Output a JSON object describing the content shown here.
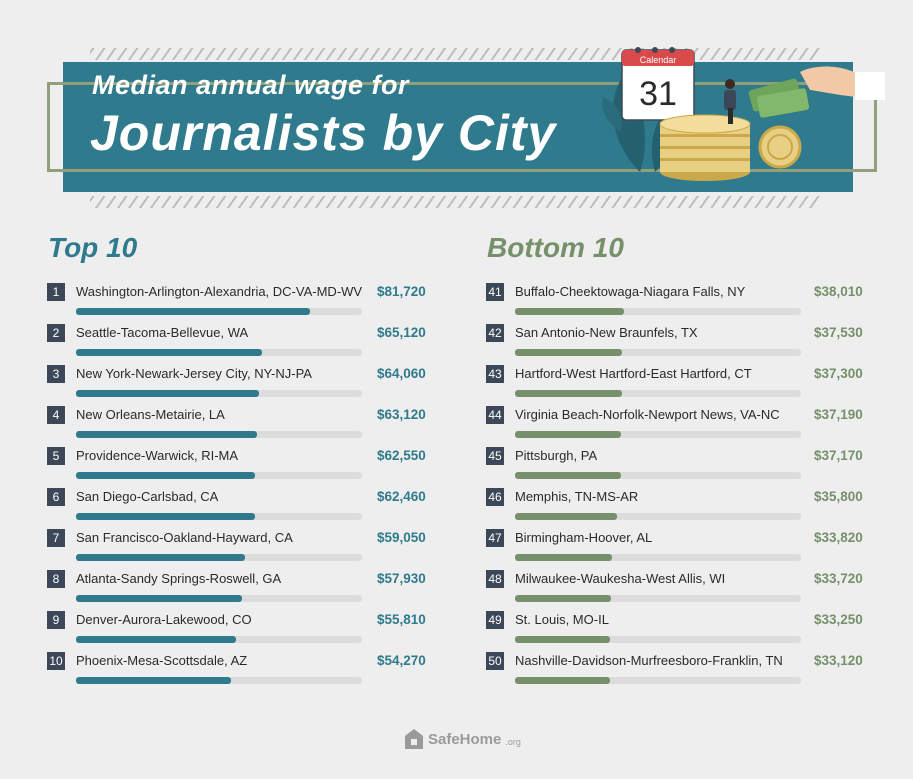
{
  "header": {
    "title_line1": "Median annual wage for",
    "title_line2": "Journalists by City",
    "calendar_label": "Calendar",
    "calendar_day": "31"
  },
  "colors": {
    "top": "#2f7a8c",
    "bottom": "#75906a",
    "rank_badge": "#3c4858"
  },
  "chart_data": [
    {
      "type": "bar",
      "title": "Top 10",
      "categories": [
        "Washington-Arlington-Alexandria, DC-VA-MD-WV",
        "Seattle-Tacoma-Bellevue, WA",
        "New York-Newark-Jersey City, NY-NJ-PA",
        "New Orleans-Metairie, LA",
        "Providence-Warwick, RI-MA",
        "San Diego-Carlsbad, CA",
        "San Francisco-Oakland-Hayward, CA",
        "Atlanta-Sandy Springs-Roswell, GA",
        "Denver-Aurora-Lakewood, CO",
        "Phoenix-Mesa-Scottsdale, AZ"
      ],
      "ranks": [
        "1",
        "2",
        "3",
        "4",
        "5",
        "6",
        "7",
        "8",
        "9",
        "10"
      ],
      "values": [
        81720,
        65120,
        64060,
        63120,
        62550,
        62460,
        59050,
        57930,
        55810,
        54270
      ],
      "value_labels": [
        "$81,720",
        "$65,120",
        "$64,060",
        "$63,120",
        "$62,550",
        "$62,460",
        "$59,050",
        "$57,930",
        "$55,810",
        "$54,270"
      ],
      "xlim": [
        0,
        100000
      ]
    },
    {
      "type": "bar",
      "title": "Bottom 10",
      "categories": [
        "Buffalo-Cheektowaga-Niagara Falls, NY",
        "San Antonio-New Braunfels, TX",
        "Hartford-West Hartford-East Hartford, CT",
        "Virginia Beach-Norfolk-Newport News, VA-NC",
        "Pittsburgh, PA",
        "Memphis, TN-MS-AR",
        "Birmingham-Hoover, AL",
        "Milwaukee-Waukesha-West Allis, WI",
        "St. Louis, MO-IL",
        "Nashville-Davidson-Murfreesboro-Franklin, TN"
      ],
      "ranks": [
        "41",
        "42",
        "43",
        "44",
        "45",
        "46",
        "47",
        "48",
        "49",
        "50"
      ],
      "values": [
        38010,
        37530,
        37300,
        37190,
        37170,
        35800,
        33820,
        33720,
        33250,
        33120
      ],
      "value_labels": [
        "$38,010",
        "$37,530",
        "$37,300",
        "$37,190",
        "$37,170",
        "$35,800",
        "$33,820",
        "$33,720",
        "$33,250",
        "$33,120"
      ],
      "xlim": [
        0,
        100000
      ]
    }
  ],
  "footer": {
    "logo_name": "SafeHome",
    "logo_suffix": ".org"
  }
}
